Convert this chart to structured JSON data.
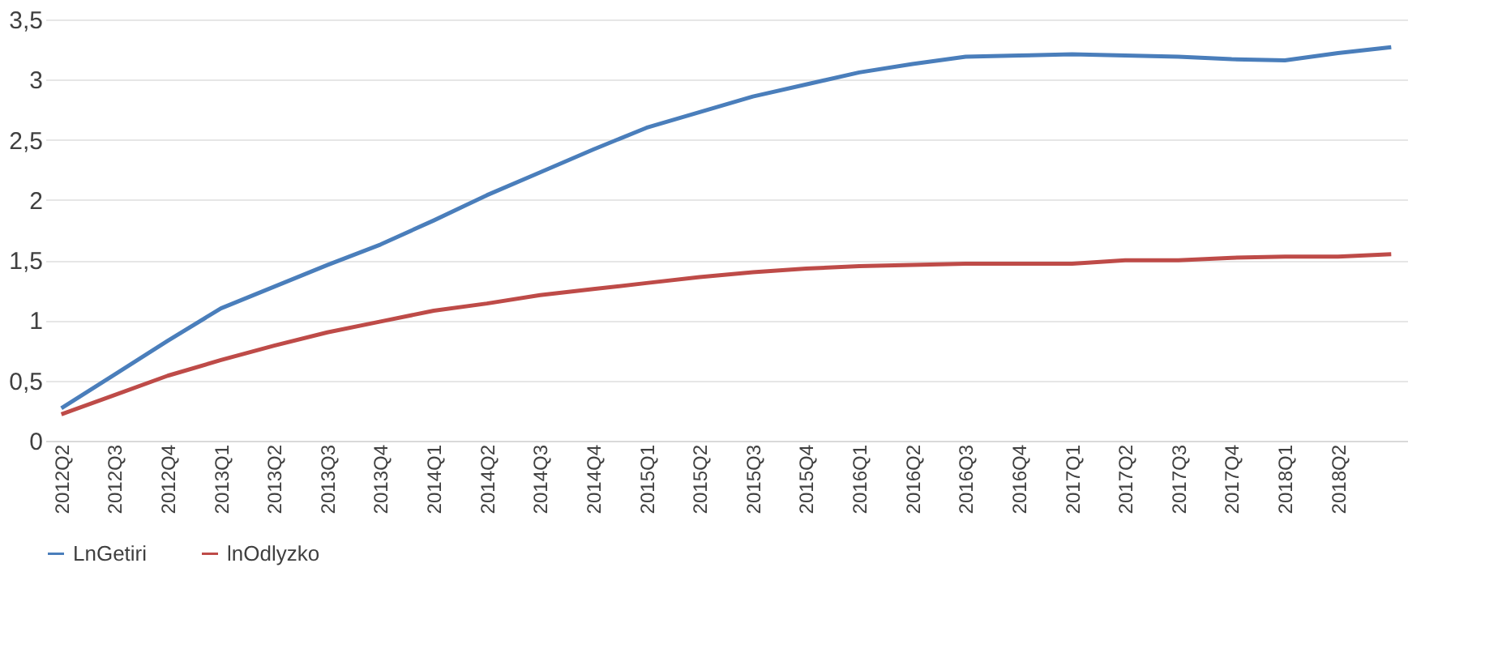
{
  "chart_data": {
    "type": "line",
    "categories": [
      "2012Q2",
      "2012Q3",
      "2012Q4",
      "2013Q1",
      "2013Q2",
      "2013Q3",
      "2013Q4",
      "2014Q1",
      "2014Q2",
      "2014Q3",
      "2014Q4",
      "2015Q1",
      "2015Q2",
      "2015Q3",
      "2015Q4",
      "2016Q1",
      "2016Q2",
      "2016Q3",
      "2016Q4",
      "2017Q1",
      "2017Q2",
      "2017Q3",
      "2017Q4",
      "2018Q1",
      "2018Q2",
      null
    ],
    "series": [
      {
        "name": "LnGetiri",
        "color": "#4a7ebb",
        "values": [
          0.27,
          0.55,
          0.83,
          1.1,
          1.28,
          1.46,
          1.63,
          1.83,
          2.04,
          2.23,
          2.42,
          2.6,
          2.73,
          2.86,
          2.96,
          3.06,
          3.13,
          3.19,
          3.2,
          3.21,
          3.2,
          3.19,
          3.17,
          3.16,
          3.22,
          3.27
        ]
      },
      {
        "name": "lnOdlyzko",
        "color": "#be4b48",
        "values": [
          0.22,
          0.38,
          0.54,
          0.67,
          0.79,
          0.9,
          0.99,
          1.08,
          1.14,
          1.21,
          1.26,
          1.31,
          1.36,
          1.4,
          1.43,
          1.45,
          1.46,
          1.47,
          1.47,
          1.47,
          1.5,
          1.5,
          1.52,
          1.53,
          1.53,
          1.55
        ]
      }
    ],
    "ylim": [
      0,
      3.5
    ],
    "yticks": [
      0,
      {
        "value": 0.5,
        "label": "0,5"
      },
      1,
      {
        "value": 1.5,
        "label": "1,5"
      },
      2,
      {
        "value": 2.5,
        "label": "2,5"
      },
      3,
      {
        "value": 3.5,
        "label": "3,5"
      }
    ],
    "grid": "y",
    "legend": "bottom",
    "marker": "none",
    "line_style": "solid"
  }
}
